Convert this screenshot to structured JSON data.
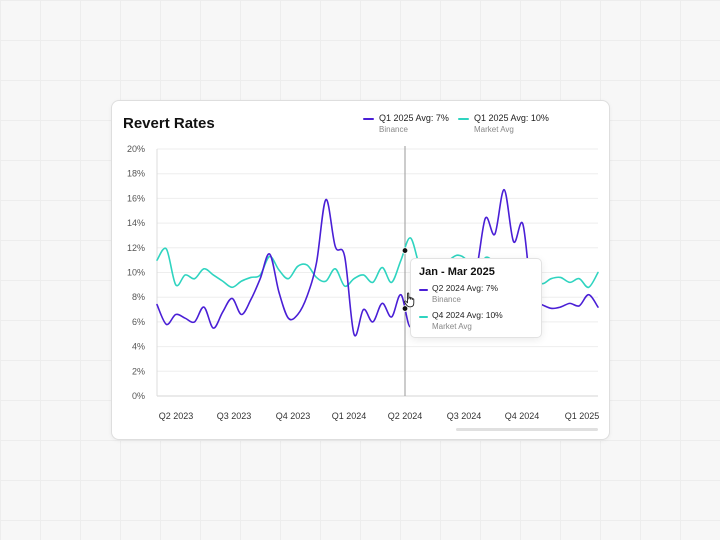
{
  "card": {
    "title": "Revert Rates"
  },
  "legend": [
    {
      "line1": "Q1 2025 Avg: 7%",
      "line2": "Binance",
      "color": "#4a1fd6"
    },
    {
      "line1": "Q1 2025 Avg: 10%",
      "line2": "Market Avg",
      "color": "#2fd4c0"
    }
  ],
  "tooltip": {
    "title": "Jan - Mar 2025",
    "rows": [
      {
        "line1": "Q2 2024 Avg: 7%",
        "line2": "Binance",
        "color": "#4a1fd6"
      },
      {
        "line1": "Q4 2024 Avg: 10%",
        "line2": "Market Avg",
        "color": "#2fd4c0"
      }
    ]
  },
  "icons": {
    "cursor": "hand-pointer-icon"
  },
  "chart_data": {
    "type": "line",
    "ylim": [
      0,
      20
    ],
    "yticks": [
      "0%",
      "2%",
      "4%",
      "6%",
      "8%",
      "10%",
      "12%",
      "14%",
      "16%",
      "18%",
      "20%"
    ],
    "xticks": [
      "Q2 2023",
      "Q3 2023",
      "Q4 2023",
      "Q1 2024",
      "Q2 2024",
      "Q3 2024",
      "Q4 2024",
      "Q1 2025"
    ],
    "grid": true,
    "legend_position": "top-right",
    "hover_category": "Q2 2024",
    "series": [
      {
        "name": "Binance",
        "color": "#4a1fd6",
        "values": [
          7.4,
          5.8,
          6.6,
          6.3,
          6.0,
          7.2,
          5.5,
          6.8,
          7.9,
          6.6,
          7.8,
          9.5,
          11.5,
          8.4,
          6.3,
          6.6,
          8.1,
          10.8,
          15.9,
          12.1,
          11.3,
          5.0,
          7.0,
          6.0,
          7.5,
          6.4,
          8.2,
          5.6,
          8.4,
          8.7,
          6.6,
          8.8,
          8.0,
          10.5,
          10.2,
          14.4,
          13.1,
          16.7,
          12.5,
          13.9,
          7.7,
          7.4,
          7.1,
          7.2,
          7.5,
          7.3,
          8.2,
          7.2
        ]
      },
      {
        "name": "Market Avg",
        "color": "#2fd4c0",
        "values": [
          11.0,
          11.9,
          9.0,
          9.8,
          9.5,
          10.3,
          9.8,
          9.3,
          8.8,
          9.3,
          9.6,
          9.8,
          11.3,
          10.2,
          9.5,
          10.5,
          10.6,
          9.6,
          9.3,
          10.3,
          8.9,
          9.5,
          9.8,
          9.2,
          10.4,
          9.2,
          11.0,
          12.8,
          10.5,
          9.2,
          10.3,
          10.9,
          11.4,
          11.0,
          9.7,
          11.2,
          10.8,
          10.6,
          9.8,
          9.6,
          9.9,
          9.1,
          9.5,
          9.6,
          9.2,
          9.5,
          8.8,
          10.0
        ]
      }
    ]
  }
}
